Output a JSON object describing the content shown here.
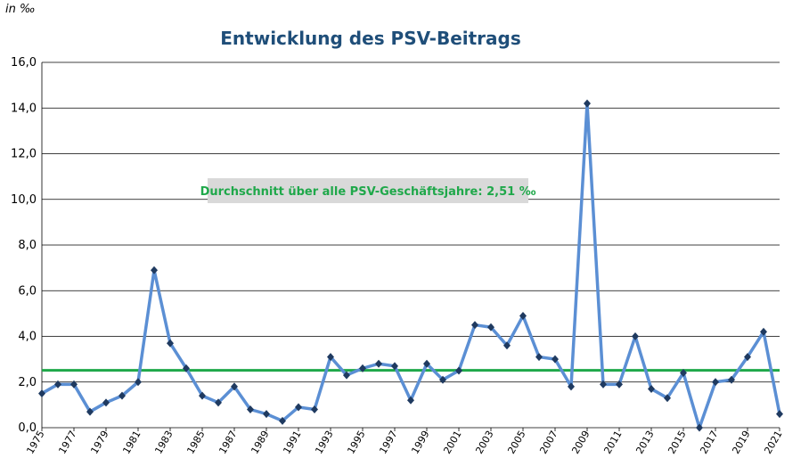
{
  "chart_data": {
    "type": "line",
    "title": "Entwicklung des PSV-Beitrags",
    "unit_label": "in ‰",
    "x": [
      1975,
      1976,
      1977,
      1978,
      1979,
      1980,
      1981,
      1982,
      1983,
      1984,
      1985,
      1986,
      1987,
      1988,
      1989,
      1990,
      1991,
      1992,
      1993,
      1994,
      1995,
      1996,
      1997,
      1998,
      1999,
      2000,
      2001,
      2002,
      2003,
      2004,
      2005,
      2006,
      2007,
      2008,
      2009,
      2010,
      2011,
      2012,
      2013,
      2014,
      2015,
      2016,
      2017,
      2018,
      2019,
      2020,
      2021
    ],
    "series": [
      {
        "name": "PSV-Beitrag",
        "color": "#5b8fd4",
        "marker_color": "#1f3a60",
        "values": [
          1.5,
          1.9,
          1.9,
          0.7,
          1.1,
          1.4,
          2.0,
          6.9,
          3.7,
          2.6,
          1.4,
          1.1,
          1.8,
          0.8,
          0.6,
          0.3,
          0.9,
          0.8,
          3.1,
          2.3,
          2.6,
          2.8,
          2.7,
          1.2,
          2.8,
          2.1,
          2.5,
          4.5,
          4.4,
          3.6,
          4.9,
          3.1,
          3.0,
          1.8,
          14.2,
          1.9,
          1.9,
          4.0,
          1.7,
          1.3,
          2.4,
          0.0,
          2.0,
          2.1,
          3.1,
          4.2,
          0.6
        ]
      }
    ],
    "average": {
      "value": 2.51,
      "color": "#1fa84a",
      "label": "Durchschnitt über alle PSV-Geschäftsjahre: 2,51 ‰"
    },
    "xlim": [
      1975,
      2021
    ],
    "xticks": [
      1975,
      1977,
      1979,
      1981,
      1983,
      1985,
      1987,
      1989,
      1991,
      1993,
      1995,
      1997,
      1999,
      2001,
      2003,
      2005,
      2007,
      2009,
      2011,
      2013,
      2015,
      2017,
      2019,
      2021
    ],
    "ylim": [
      0,
      16
    ],
    "yticks": [
      {
        "value": 0,
        "label": "0,0"
      },
      {
        "value": 2,
        "label": "2,0"
      },
      {
        "value": 4,
        "label": "4,0"
      },
      {
        "value": 6,
        "label": "6,0"
      },
      {
        "value": 8,
        "label": "8,0"
      },
      {
        "value": 10,
        "label": "10,0"
      },
      {
        "value": 12,
        "label": "12,0"
      },
      {
        "value": 14,
        "label": "14,0"
      },
      {
        "value": 16,
        "label": "16,0"
      }
    ],
    "grid": true
  }
}
